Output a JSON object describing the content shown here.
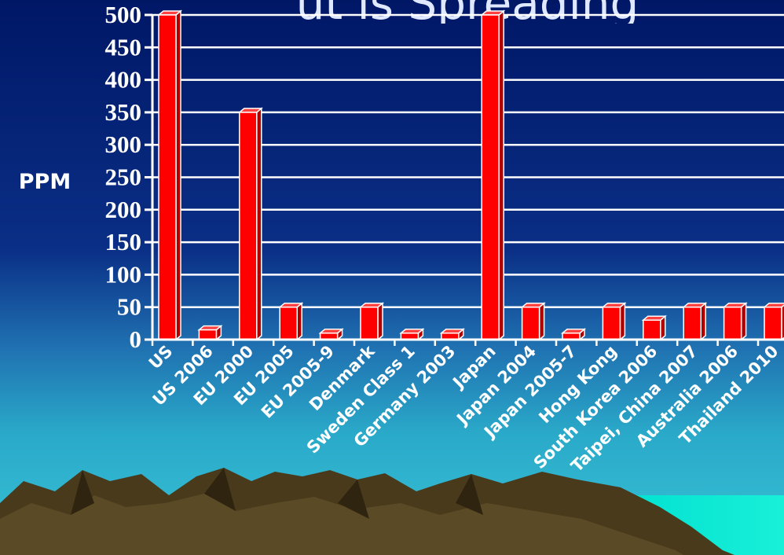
{
  "slide": {
    "title_fragment": "ut is Spreading"
  },
  "chart_data": {
    "type": "bar",
    "ylabel": "PPM",
    "xlabel": "",
    "ylim": [
      0,
      500
    ],
    "yticks": [
      0,
      50,
      100,
      150,
      200,
      250,
      300,
      350,
      400,
      450,
      500
    ],
    "grid": true,
    "categories": [
      "US",
      "US 2006",
      "EU 2000",
      "EU 2005",
      "EU 2005-9",
      "Denmark",
      "Sweden Class 1",
      "Germany 2003",
      "Japan",
      "Japan 2004",
      "Japan 2005-7",
      "Hong Kong",
      "South Korea 2006",
      "Taipei, China 2007",
      "Australia 2006",
      "Thailand 2010"
    ],
    "values": [
      500,
      15,
      350,
      50,
      10,
      50,
      10,
      10,
      500,
      50,
      10,
      50,
      30,
      50,
      50,
      50
    ],
    "colors": {
      "bar": "#ff0000",
      "grid": "#ffffff",
      "background_top": "#001a66"
    }
  }
}
